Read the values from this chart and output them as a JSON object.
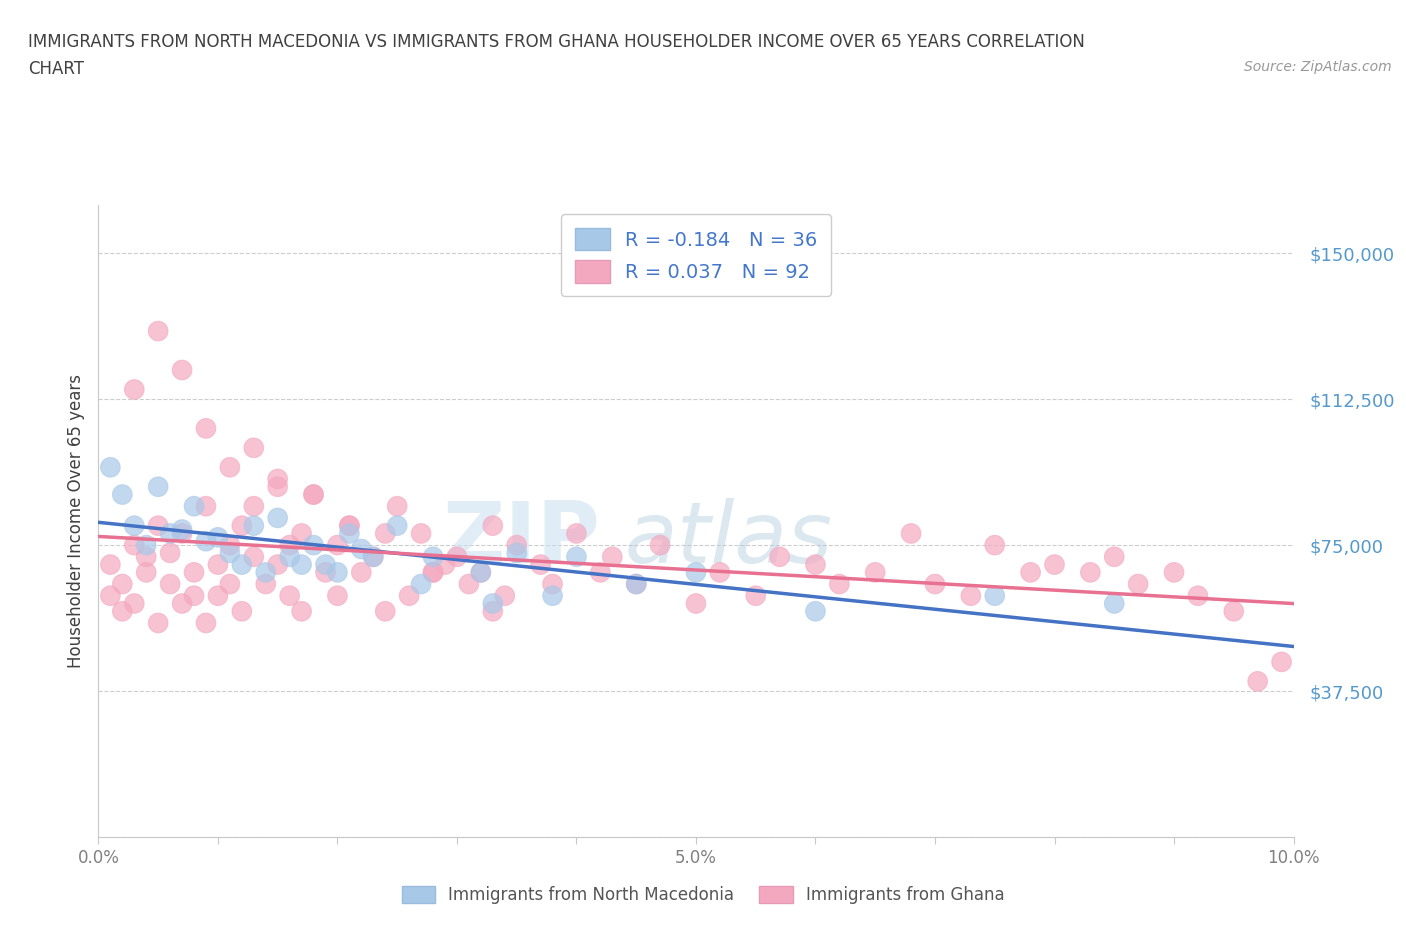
{
  "title_line1": "IMMIGRANTS FROM NORTH MACEDONIA VS IMMIGRANTS FROM GHANA HOUSEHOLDER INCOME OVER 65 YEARS CORRELATION",
  "title_line2": "CHART",
  "source_text": "Source: ZipAtlas.com",
  "ylabel": "Householder Income Over 65 years",
  "xlim": [
    0.0,
    0.1
  ],
  "ylim": [
    0,
    162500
  ],
  "yticks": [
    0,
    37500,
    75000,
    112500,
    150000
  ],
  "ytick_labels": [
    "",
    "$37,500",
    "$75,000",
    "$112,500",
    "$150,000"
  ],
  "xtick_positions": [
    0.0,
    0.01,
    0.02,
    0.03,
    0.04,
    0.05,
    0.06,
    0.07,
    0.08,
    0.09,
    0.1
  ],
  "xtick_labels": [
    "0.0%",
    "",
    "",
    "",
    "",
    "5.0%",
    "",
    "",
    "",
    "",
    "10.0%"
  ],
  "r_north_macedonia": -0.184,
  "n_north_macedonia": 36,
  "r_ghana": 0.037,
  "n_ghana": 92,
  "color_macedonia": "#a8c8e8",
  "color_ghana": "#f4a8c0",
  "line_color_macedonia": "#4472c4",
  "line_color_ghana": "#e87090",
  "legend_label_macedonia": "Immigrants from North Macedonia",
  "legend_label_ghana": "Immigrants from Ghana",
  "watermark_zip": "ZIP",
  "watermark_atlas": "atlas",
  "background_color": "#ffffff",
  "grid_color": "#c8c8c8",
  "title_color": "#404040",
  "ylabel_color": "#404040",
  "ytick_color": "#5599cc",
  "xtick_color": "#808080",
  "source_color": "#999999",
  "scatter_mac_x": [
    0.005,
    0.001,
    0.003,
    0.008,
    0.006,
    0.002,
    0.004,
    0.015,
    0.012,
    0.007,
    0.009,
    0.011,
    0.013,
    0.018,
    0.021,
    0.025,
    0.014,
    0.016,
    0.019,
    0.022,
    0.028,
    0.032,
    0.035,
    0.04,
    0.045,
    0.05,
    0.01,
    0.017,
    0.02,
    0.023,
    0.027,
    0.033,
    0.038,
    0.06,
    0.075,
    0.085
  ],
  "scatter_mac_y": [
    90000,
    95000,
    80000,
    85000,
    78000,
    88000,
    75000,
    82000,
    70000,
    79000,
    76000,
    73000,
    80000,
    75000,
    78000,
    80000,
    68000,
    72000,
    70000,
    74000,
    72000,
    68000,
    73000,
    72000,
    65000,
    68000,
    77000,
    70000,
    68000,
    72000,
    65000,
    60000,
    62000,
    58000,
    62000,
    60000
  ],
  "scatter_gha_x": [
    0.001,
    0.001,
    0.002,
    0.002,
    0.003,
    0.003,
    0.004,
    0.004,
    0.005,
    0.005,
    0.006,
    0.006,
    0.007,
    0.007,
    0.008,
    0.008,
    0.009,
    0.009,
    0.01,
    0.01,
    0.011,
    0.011,
    0.012,
    0.012,
    0.013,
    0.013,
    0.014,
    0.015,
    0.015,
    0.016,
    0.016,
    0.017,
    0.017,
    0.018,
    0.019,
    0.02,
    0.02,
    0.021,
    0.022,
    0.023,
    0.024,
    0.025,
    0.026,
    0.027,
    0.028,
    0.029,
    0.03,
    0.031,
    0.032,
    0.033,
    0.034,
    0.035,
    0.037,
    0.038,
    0.04,
    0.042,
    0.043,
    0.045,
    0.047,
    0.05,
    0.052,
    0.055,
    0.057,
    0.06,
    0.062,
    0.065,
    0.068,
    0.07,
    0.073,
    0.075,
    0.078,
    0.08,
    0.083,
    0.085,
    0.087,
    0.09,
    0.092,
    0.095,
    0.097,
    0.099,
    0.003,
    0.005,
    0.007,
    0.009,
    0.011,
    0.013,
    0.015,
    0.018,
    0.021,
    0.024,
    0.028,
    0.033
  ],
  "scatter_gha_y": [
    62000,
    70000,
    65000,
    58000,
    75000,
    60000,
    68000,
    72000,
    55000,
    80000,
    65000,
    73000,
    60000,
    78000,
    68000,
    62000,
    85000,
    55000,
    70000,
    62000,
    75000,
    65000,
    80000,
    58000,
    72000,
    85000,
    65000,
    90000,
    70000,
    75000,
    62000,
    78000,
    58000,
    88000,
    68000,
    75000,
    62000,
    80000,
    68000,
    72000,
    58000,
    85000,
    62000,
    78000,
    68000,
    70000,
    72000,
    65000,
    68000,
    80000,
    62000,
    75000,
    70000,
    65000,
    78000,
    68000,
    72000,
    65000,
    75000,
    60000,
    68000,
    62000,
    72000,
    70000,
    65000,
    68000,
    78000,
    65000,
    62000,
    75000,
    68000,
    70000,
    68000,
    72000,
    65000,
    68000,
    62000,
    58000,
    40000,
    45000,
    115000,
    130000,
    120000,
    105000,
    95000,
    100000,
    92000,
    88000,
    80000,
    78000,
    68000,
    58000
  ]
}
